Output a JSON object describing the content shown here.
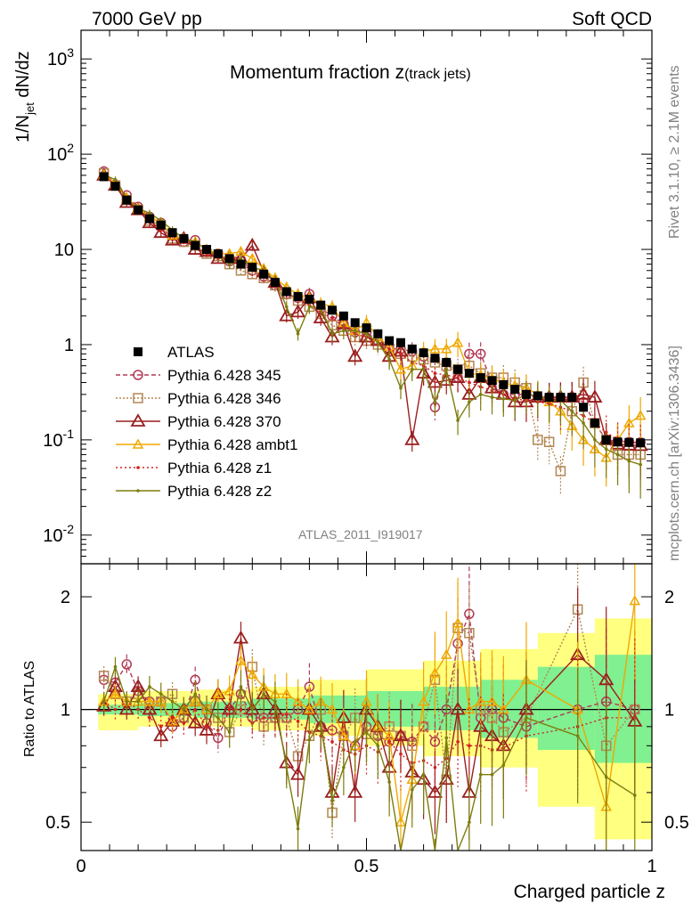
{
  "header": {
    "left": "7000 GeV pp",
    "right": "Soft QCD",
    "plot_title_main": "Momentum fraction ",
    "plot_title_z": "z",
    "plot_title_sub": "(track jets)"
  },
  "side_labels": {
    "rivet": "Rivet 3.1.10, ≥ 2.1M events",
    "mcplots": "mcplots.cern.ch [arXiv:1306.3436]"
  },
  "watermark": "ATLAS_2011_I919017",
  "axes": {
    "xlabel": "Charged particle z",
    "ylabel_top": "1/N",
    "ylabel_top_sub": "jet",
    "ylabel_top_tail": " dN/dz",
    "ylabel_bottom": "Ratio to ATLAS",
    "x_ticks": [
      "0",
      "0.5",
      "1"
    ],
    "y_ticks_top": [
      "10^3",
      "10^2",
      "10",
      "1",
      "10^-1",
      "10^-2"
    ],
    "y_ticks_bottom": [
      "2",
      "1",
      "0.5"
    ]
  },
  "colors": {
    "atlas": "#000000",
    "p345": "#b03a55",
    "p346": "#b38653",
    "p370": "#9a1e1e",
    "ambt1": "#f0a800",
    "z1": "#d42020",
    "z2": "#7d7d0e",
    "band_inner": "#80f090",
    "band_outer": "#ffff80"
  },
  "chart_data": {
    "type": "scatter",
    "x_scale": "linear",
    "y_scale_main": "log",
    "y_scale_ratio": "log",
    "xlim": [
      0,
      1
    ],
    "ylim_main": [
      0.005,
      2000
    ],
    "ylim_ratio": [
      0.42,
      2.45
    ],
    "x": [
      0.04,
      0.06,
      0.08,
      0.1,
      0.12,
      0.14,
      0.16,
      0.18,
      0.2,
      0.22,
      0.24,
      0.26,
      0.28,
      0.3,
      0.32,
      0.34,
      0.36,
      0.38,
      0.4,
      0.42,
      0.44,
      0.46,
      0.48,
      0.5,
      0.52,
      0.54,
      0.56,
      0.58,
      0.6,
      0.62,
      0.64,
      0.66,
      0.68,
      0.7,
      0.72,
      0.74,
      0.76,
      0.78,
      0.8,
      0.82,
      0.84,
      0.86,
      0.88,
      0.9,
      0.92,
      0.94,
      0.96,
      0.98
    ],
    "series": [
      {
        "name": "ATLAS",
        "values": [
          58,
          46,
          33,
          26,
          21,
          18,
          15,
          13,
          11,
          10,
          9,
          8,
          7,
          6.5,
          5.5,
          4.5,
          3.6,
          3.2,
          3.0,
          2.6,
          2.3,
          2.0,
          1.7,
          1.5,
          1.3,
          1.1,
          1.05,
          0.9,
          0.82,
          0.72,
          0.65,
          0.55,
          0.5,
          0.45,
          0.42,
          0.38,
          0.34,
          0.3,
          0.29,
          0.28,
          0.28,
          0.28,
          0.22,
          0.15,
          0.1,
          0.095,
          0.094,
          0.093
        ]
      },
      {
        "name": "Pythia 6.428 345",
        "values": [
          66,
          48,
          37,
          28,
          22,
          19,
          14,
          12,
          12.5,
          9.5,
          9,
          7.5,
          7.8,
          6,
          5.2,
          4.2,
          3.4,
          3.1,
          3.4,
          2.4,
          2.0,
          1.65,
          1.35,
          1.35,
          1.1,
          0.9,
          0.9,
          0.85,
          0.75,
          0.22,
          0.65,
          0.45,
          0.8,
          0.8,
          0.4,
          0.3,
          0.3,
          0.3,
          0.28,
          0.28,
          0.28,
          0.28,
          0.25,
          0.15,
          0.1,
          0.097,
          0.095,
          0.094
        ]
      },
      {
        "name": "Pythia 6.428 346",
        "values": [
          63,
          47,
          33,
          26,
          20,
          18,
          13,
          12,
          11,
          9,
          8.5,
          7,
          6,
          5.5,
          5,
          4.2,
          3.4,
          2.9,
          2.5,
          2.1,
          1.6,
          1.4,
          1.2,
          1.1,
          1.0,
          0.9,
          0.8,
          0.75,
          0.7,
          0.65,
          0.6,
          0.55,
          0.6,
          0.5,
          0.45,
          0.45,
          0.4,
          0.35,
          0.1,
          0.095,
          0.047,
          0.2,
          0.4,
          0.15,
          0.1,
          0.07,
          0.07,
          0.07
        ]
      },
      {
        "name": "Pythia 6.428 370",
        "values": [
          60,
          47,
          31,
          26,
          19,
          15,
          12.5,
          13,
          10,
          9.5,
          8,
          8.5,
          8,
          11,
          5.8,
          4.5,
          2.0,
          2.2,
          3.1,
          1.9,
          1.2,
          1.65,
          0.75,
          1.2,
          1.1,
          0.75,
          0.85,
          0.1,
          0.5,
          0.4,
          0.42,
          0.45,
          0.3,
          0.45,
          0.35,
          0.3,
          0.25,
          0.25,
          0.28,
          0.28,
          0.28,
          0.28,
          0.3,
          0.28,
          0.1,
          0.09,
          0.088,
          0.087
        ]
      },
      {
        "name": "Pythia 6.428 ambt1",
        "values": [
          61,
          49,
          35,
          27,
          22,
          19,
          14,
          13,
          12,
          10,
          9,
          9,
          9.5,
          8,
          6.3,
          5,
          4,
          3.4,
          3.1,
          2.7,
          2.5,
          1.7,
          1.4,
          1.7,
          1.2,
          0.95,
          0.55,
          0.6,
          0.85,
          0.9,
          0.9,
          1.05,
          0.5,
          0.48,
          0.44,
          0.4,
          0.37,
          0.35,
          0.3,
          0.25,
          0.2,
          0.14,
          0.1,
          0.08,
          0.065,
          0.1,
          0.15,
          0.18
        ]
      },
      {
        "name": "Pythia 6.428 z1",
        "values": [
          60,
          47,
          34,
          26,
          20,
          16,
          14,
          12,
          11,
          9,
          8,
          8,
          7,
          6,
          5.2,
          4.4,
          3.5,
          3.0,
          2.6,
          2.2,
          1.9,
          1.55,
          1.3,
          1.2,
          1.0,
          0.9,
          0.8,
          0.65,
          0.6,
          0.5,
          0.48,
          0.45,
          0.4,
          0.36,
          0.33,
          0.3,
          0.27,
          0.26,
          0.25,
          0.24,
          0.22,
          0.2,
          0.18,
          0.15,
          0.12,
          0.1,
          0.095,
          0.092
        ]
      },
      {
        "name": "Pythia 6.428 z2",
        "values": [
          61,
          54,
          34,
          27,
          24,
          20,
          16,
          13,
          12,
          10,
          8.5,
          7,
          8,
          6.5,
          6,
          4.7,
          2.5,
          1.3,
          2.5,
          2.4,
          1.3,
          1.4,
          1.4,
          1.3,
          1.05,
          0.7,
          0.35,
          0.55,
          0.55,
          0.25,
          0.55,
          0.16,
          0.25,
          0.3,
          0.28,
          0.27,
          0.26,
          0.3,
          0.29,
          0.26,
          0.26,
          0.2,
          0.15,
          0.1,
          0.08,
          0.07,
          0.06,
          0.055
        ]
      }
    ],
    "ratio": {
      "x": [
        0.04,
        0.06,
        0.08,
        0.1,
        0.12,
        0.14,
        0.16,
        0.18,
        0.2,
        0.22,
        0.24,
        0.26,
        0.28,
        0.3,
        0.32,
        0.34,
        0.36,
        0.38,
        0.4,
        0.42,
        0.44,
        0.46,
        0.48,
        0.5,
        0.52,
        0.54,
        0.56,
        0.58,
        0.6,
        0.62,
        0.64,
        0.66,
        0.68,
        0.7,
        0.72,
        0.74,
        0.78,
        0.87,
        0.92,
        0.97
      ],
      "series": [
        {
          "name": "Pythia 6.428 345",
          "values": [
            1.2,
            1.18,
            1.32,
            1.12,
            1.05,
            1.05,
            0.9,
            0.95,
            1.2,
            0.92,
            0.84,
            1.0,
            1.1,
            0.95,
            0.95,
            0.95,
            0.95,
            1.0,
            1.15,
            0.9,
            0.88,
            0.85,
            0.8,
            0.9,
            0.85,
            0.82,
            0.85,
            0.82,
            0.9,
            0.82,
            1.0,
            1.5,
            1.8,
            0.95,
            1.0,
            0.95,
            0.9,
            1.0,
            1.05,
            1.0
          ]
        },
        {
          "name": "Pythia 6.428 346",
          "values": [
            1.23,
            1.1,
            1.05,
            1.1,
            1.0,
            1.05,
            1.1,
            0.95,
            1.05,
            1.0,
            0.95,
            0.87,
            1.0,
            1.3,
            0.9,
            0.95,
            0.95,
            0.75,
            0.85,
            1.0,
            0.53,
            0.85,
            0.95,
            0.86,
            0.86,
            0.9,
            0.85,
            0.8,
            0.9,
            1.2,
            0.65,
            1.65,
            1.6,
            1.0,
            0.95,
            0.87,
            0.95,
            1.85,
            0.8,
            1.0
          ]
        },
        {
          "name": "Pythia 6.428 370",
          "values": [
            1.02,
            1.15,
            1.0,
            1.15,
            1.0,
            0.85,
            0.93,
            1.0,
            0.92,
            0.88,
            1.1,
            1.0,
            1.55,
            1.0,
            1.1,
            1.0,
            0.72,
            0.67,
            1.0,
            0.9,
            0.6,
            0.95,
            0.6,
            1.0,
            0.9,
            0.7,
            0.85,
            0.68,
            0.65,
            0.6,
            0.65,
            1.0,
            0.6,
            0.9,
            0.85,
            0.8,
            1.0,
            1.4,
            1.2,
            0.93
          ]
        },
        {
          "name": "Pythia 6.428 ambt1",
          "values": [
            1.05,
            1.1,
            1.05,
            1.05,
            1.05,
            1.05,
            0.93,
            1.0,
            1.05,
            1.0,
            1.1,
            1.12,
            1.35,
            1.24,
            1.15,
            1.1,
            1.1,
            1.05,
            1.0,
            1.05,
            1.0,
            0.85,
            0.8,
            1.05,
            0.9,
            0.85,
            0.5,
            0.65,
            1.05,
            1.25,
            1.4,
            1.7,
            1.0,
            1.05,
            1.05,
            1.0,
            1.2,
            1.0,
            0.55,
            1.95
          ]
        },
        {
          "name": "Pythia 6.428 z1",
          "values": [
            1.05,
            1.0,
            1.05,
            1.0,
            0.95,
            0.9,
            0.95,
            0.92,
            1.0,
            0.9,
            0.88,
            1.0,
            1.0,
            0.92,
            0.95,
            0.95,
            0.97,
            0.93,
            0.87,
            0.85,
            0.82,
            0.78,
            0.76,
            0.8,
            0.77,
            0.82,
            0.76,
            0.72,
            0.73,
            0.7,
            0.74,
            0.82,
            0.8,
            0.8,
            0.78,
            0.79,
            0.85,
            0.9,
            0.95,
            0.95
          ]
        },
        {
          "name": "Pythia 6.428 z2",
          "values": [
            1.05,
            1.3,
            1.05,
            1.05,
            1.15,
            1.1,
            1.05,
            1.0,
            1.1,
            1.0,
            0.95,
            0.87,
            1.15,
            1.0,
            1.1,
            1.05,
            0.7,
            0.48,
            0.83,
            0.92,
            0.57,
            0.7,
            0.82,
            0.87,
            0.8,
            0.64,
            0.33,
            0.61,
            0.67,
            0.35,
            0.84,
            0.29,
            0.5,
            0.67,
            0.67,
            0.71,
            0.95,
            0.85,
            0.66,
            0.59
          ]
        }
      ]
    },
    "band": {
      "x_edges": [
        0.03,
        0.1,
        0.2,
        0.3,
        0.4,
        0.5,
        0.6,
        0.7,
        0.8,
        0.9,
        1.0
      ],
      "inner_lo": [
        0.97,
        0.96,
        0.95,
        0.94,
        0.92,
        0.9,
        0.88,
        0.84,
        0.78,
        0.72
      ],
      "inner_hi": [
        1.03,
        1.04,
        1.05,
        1.07,
        1.09,
        1.12,
        1.15,
        1.2,
        1.3,
        1.4
      ],
      "outer_lo": [
        0.88,
        0.9,
        0.9,
        0.88,
        0.85,
        0.8,
        0.75,
        0.7,
        0.55,
        0.45
      ],
      "outer_hi": [
        1.1,
        1.12,
        1.13,
        1.15,
        1.2,
        1.28,
        1.35,
        1.45,
        1.6,
        1.75
      ]
    },
    "legend_position": "middle-left"
  }
}
